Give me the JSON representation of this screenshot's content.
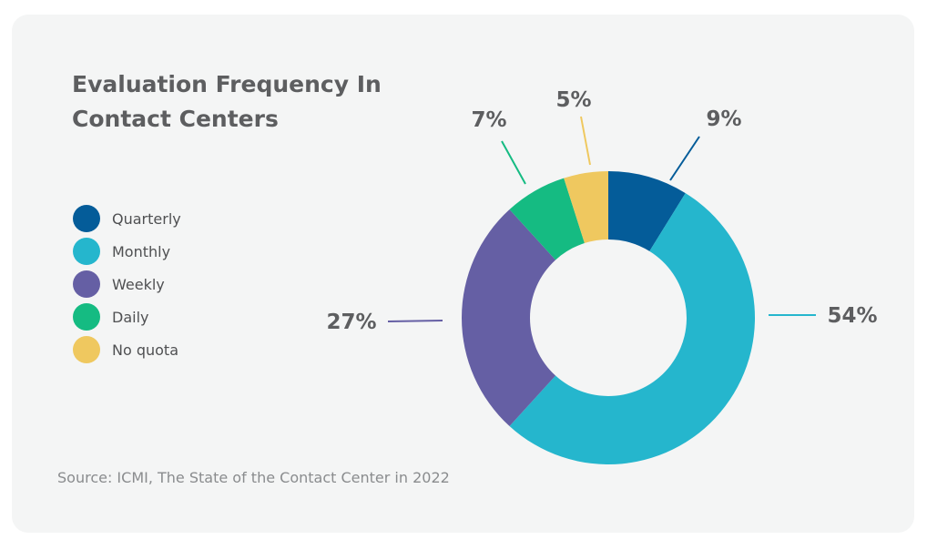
{
  "title_lines": [
    "Evaluation Frequency In",
    "Contact Centers"
  ],
  "source": "Source: ICMI, The State of the Contact Center in 2022",
  "chart_data": {
    "type": "pie",
    "donut": true,
    "title": "Evaluation Frequency In Contact Centers",
    "legend_placement": "left",
    "categories": [
      "Quarterly",
      "Monthly",
      "Weekly",
      "Daily",
      "No quota"
    ],
    "values": [
      9,
      54,
      27,
      7,
      5
    ],
    "value_labels": [
      "9%",
      "54%",
      "27%",
      "7%",
      "5%"
    ],
    "colors": [
      "#045c99",
      "#25b6cd",
      "#655fa4",
      "#15bb82",
      "#efc85f"
    ]
  }
}
